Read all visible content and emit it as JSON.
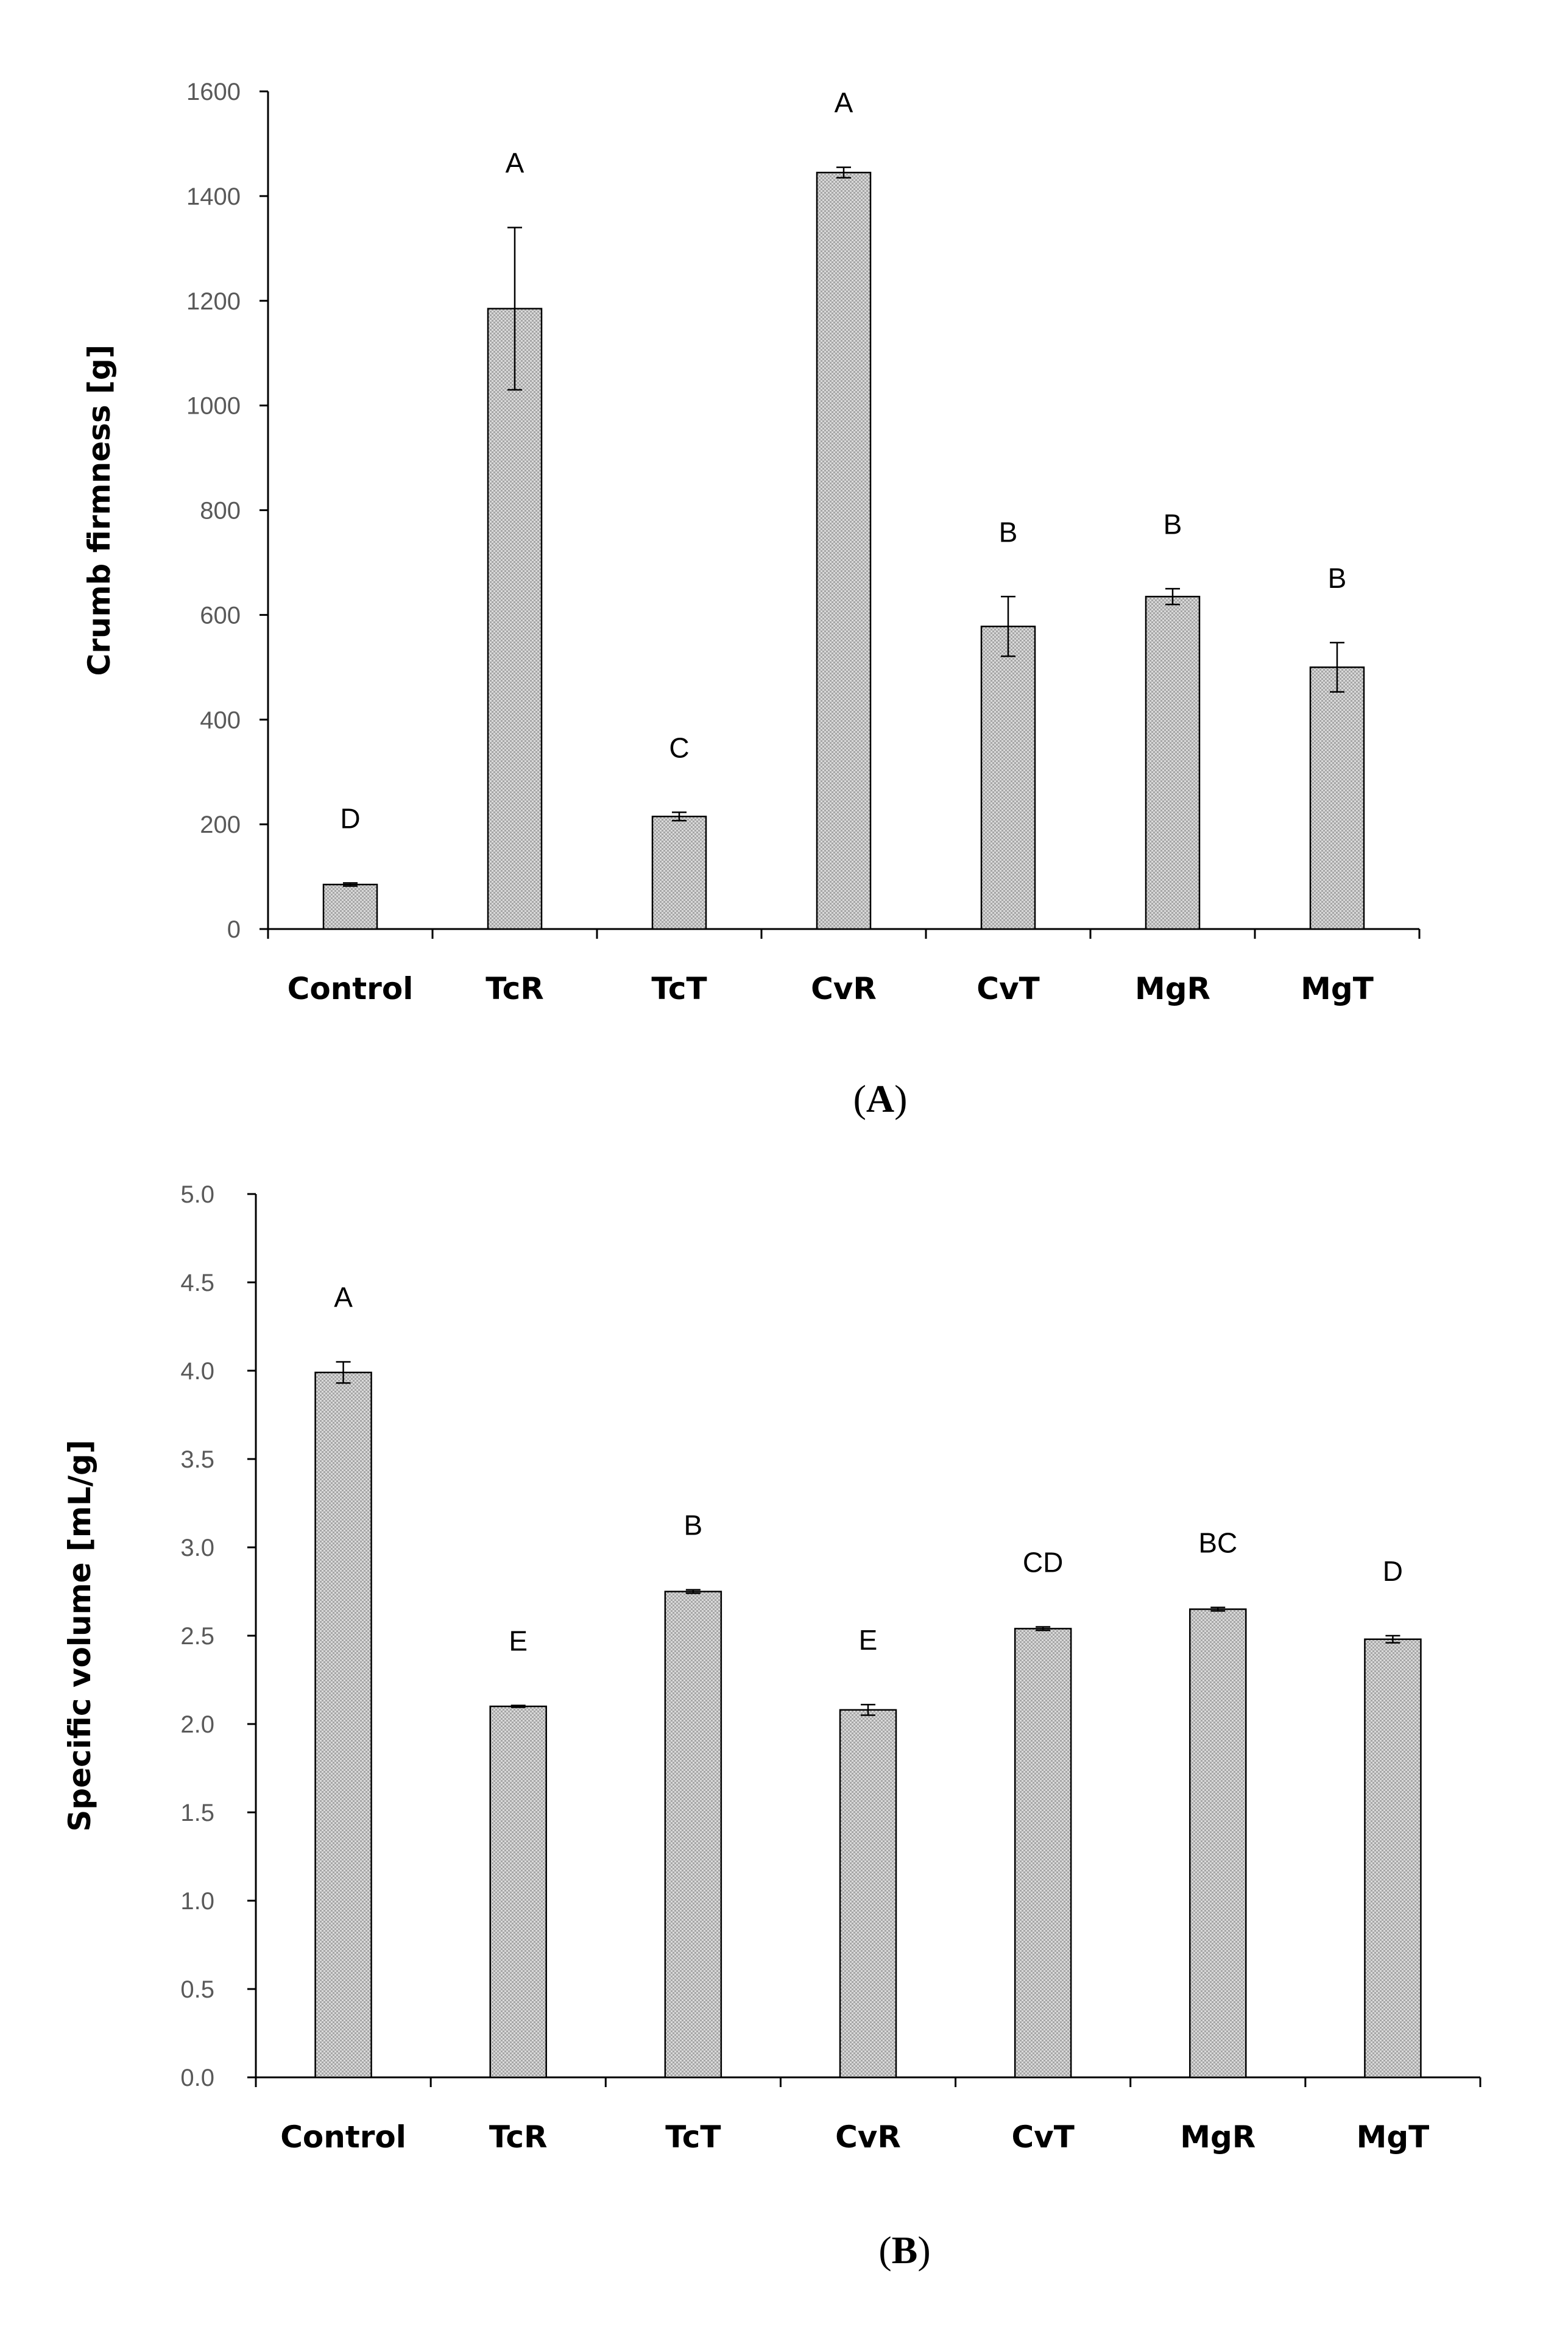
{
  "chart_data": [
    {
      "panel": "A",
      "type": "bar",
      "title": "",
      "xlabel": "",
      "ylabel": "Crumb firmness [g]",
      "ylim": [
        0,
        1600
      ],
      "yticks": [
        0,
        200,
        400,
        600,
        800,
        1000,
        1200,
        1400,
        1600
      ],
      "ytick_labels": [
        "0",
        "200",
        "400",
        "600",
        "800",
        "1000",
        "1200",
        "1400",
        "1600"
      ],
      "categories": [
        "Control",
        "TcR",
        "TcT",
        "CvR",
        "CvT",
        "MgR",
        "MgT"
      ],
      "values": [
        85,
        1185,
        215,
        1445,
        578,
        635,
        500
      ],
      "errors": [
        3,
        155,
        8,
        10,
        57,
        15,
        47
      ],
      "significance": [
        "D",
        "A",
        "C",
        "A",
        "B",
        "B",
        "B"
      ],
      "caption_letter": "A",
      "bar_color": "#c8c8c8"
    },
    {
      "panel": "B",
      "type": "bar",
      "title": "",
      "xlabel": "",
      "ylabel": "Specific volume [mL/g]",
      "ylim": [
        0,
        5.0
      ],
      "yticks": [
        0,
        0.5,
        1.0,
        1.5,
        2.0,
        2.5,
        3.0,
        3.5,
        4.0,
        4.5,
        5.0
      ],
      "ytick_labels": [
        "0.0",
        "0.5",
        "1.0",
        "1.5",
        "2.0",
        "2.5",
        "3.0",
        "3.5",
        "4.0",
        "4.5",
        "5.0"
      ],
      "categories": [
        "Control",
        "TcR",
        "TcT",
        "CvR",
        "CvT",
        "MgR",
        "MgT"
      ],
      "values": [
        3.99,
        2.1,
        2.75,
        2.08,
        2.54,
        2.65,
        2.48
      ],
      "errors": [
        0.06,
        0.005,
        0.01,
        0.03,
        0.01,
        0.01,
        0.02
      ],
      "significance": [
        "A",
        "E",
        "B",
        "E",
        "CD",
        "BC",
        "D"
      ],
      "caption_letter": "B",
      "bar_color": "#c8c8c8"
    }
  ]
}
